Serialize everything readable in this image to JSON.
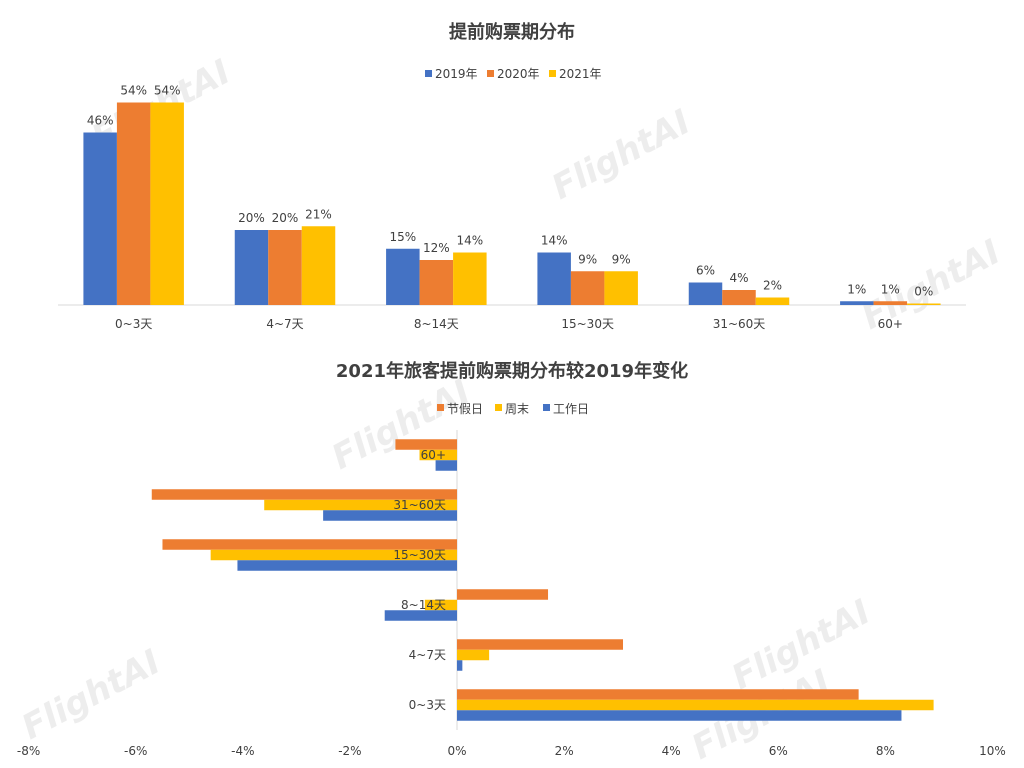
{
  "watermark": "FlightAI",
  "colors": {
    "blue": "#4472C4",
    "orange": "#ED7D31",
    "gold": "#FFC000",
    "axis": "#d9d9d9",
    "text": "#404040"
  },
  "chart_data": [
    {
      "type": "bar",
      "title": "提前购票期分布",
      "categories": [
        "0~3天",
        "4~7天",
        "8~14天",
        "15~30天",
        "31~60天",
        "60+"
      ],
      "series": [
        {
          "name": "2019年",
          "values": [
            46,
            20,
            15,
            14,
            6,
            1
          ],
          "labels": [
            "46%",
            "20%",
            "15%",
            "14%",
            "6%",
            "1%"
          ]
        },
        {
          "name": "2020年",
          "values": [
            54,
            20,
            12,
            9,
            4,
            1
          ],
          "labels": [
            "54%",
            "20%",
            "12%",
            "9%",
            "4%",
            "1%"
          ]
        },
        {
          "name": "2021年",
          "values": [
            54,
            21,
            14,
            9,
            2,
            0.4
          ],
          "labels": [
            "54%",
            "21%",
            "14%",
            "9%",
            "2%",
            "0%"
          ]
        }
      ],
      "ylim": [
        0,
        60
      ],
      "legend": "top",
      "grid": false
    },
    {
      "type": "bar",
      "orientation": "horizontal",
      "title": "2021年旅客提前购票期分布较2019年变化",
      "categories": [
        "0~3天",
        "4~7天",
        "8~14天",
        "15~30天",
        "31~60天",
        "60+"
      ],
      "series": [
        {
          "name": "工作日",
          "values": [
            8.3,
            0.1,
            -1.35,
            -4.1,
            -2.5,
            -0.4
          ]
        },
        {
          "name": "周末",
          "values": [
            8.9,
            0.6,
            -0.6,
            -4.6,
            -3.6,
            -0.7
          ]
        },
        {
          "name": "节假日",
          "values": [
            7.5,
            3.1,
            1.7,
            -5.5,
            -5.7,
            -1.15
          ]
        }
      ],
      "xlim": [
        -8,
        10
      ],
      "xticks": [
        "-8%",
        "-6%",
        "-4%",
        "-2%",
        "0%",
        "2%",
        "4%",
        "6%",
        "8%",
        "10%"
      ],
      "legend": "top",
      "grid": false
    }
  ]
}
